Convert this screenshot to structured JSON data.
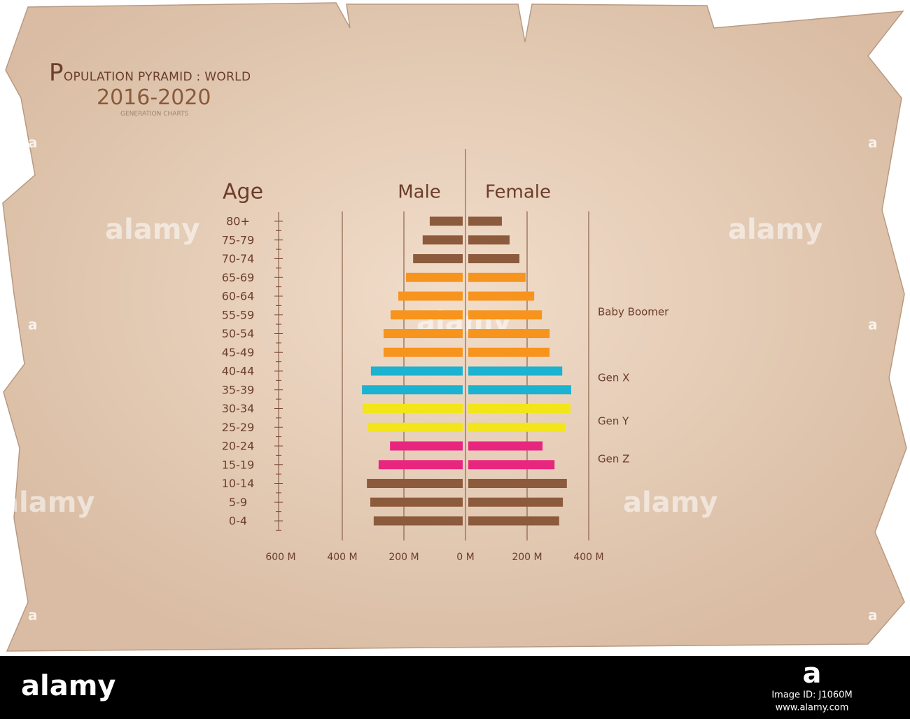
{
  "header": {
    "title": "POPULATION PYRAMID : WORLD",
    "years": "2016-2020",
    "subtitle": "GENERATION CHARTS"
  },
  "chart_data": {
    "type": "pyramid",
    "y_axis_title": "Age",
    "categories": [
      "80+",
      "75-79",
      "70-74",
      "65-69",
      "60-64",
      "55-59",
      "50-54",
      "45-49",
      "40-44",
      "35-39",
      "30-34",
      "25-29",
      "20-24",
      "15-19",
      "10-14",
      "5-9",
      "0-4"
    ],
    "colors": [
      "#8c5a3c",
      "#8c5a3c",
      "#8c5a3c",
      "#f7941d",
      "#f7941d",
      "#f7941d",
      "#f7941d",
      "#f7941d",
      "#1bb3d1",
      "#1bb3d1",
      "#f2e51a",
      "#f2e51a",
      "#e8267f",
      "#e8267f",
      "#8c5a3c",
      "#8c5a3c",
      "#8c5a3c"
    ],
    "series": [
      {
        "name": "Male",
        "values": [
          -107,
          -130,
          -161,
          -184,
          -209,
          -234,
          -257,
          -257,
          -298,
          -327,
          -325,
          -307,
          -236,
          -273,
          -311,
          -300,
          -289
        ]
      },
      {
        "name": "Female",
        "values": [
          109,
          134,
          166,
          186,
          214,
          239,
          264,
          264,
          305,
          334,
          332,
          314,
          241,
          280,
          320,
          307,
          295
        ]
      }
    ],
    "xlim": [
      -600,
      400
    ],
    "xticks": [
      {
        "value": -600,
        "label": "600 M"
      },
      {
        "value": -400,
        "label": "400 M"
      },
      {
        "value": -200,
        "label": "200 M"
      },
      {
        "value": 0,
        "label": "0 M"
      },
      {
        "value": 200,
        "label": "200 M"
      },
      {
        "value": 400,
        "label": "400 M"
      }
    ],
    "annotations": [
      "Baby Boomer",
      "Gen X",
      "Gen Y",
      "Gen Z"
    ]
  },
  "watermark": {
    "brand": "alamy",
    "logo": "a",
    "image_id": "Image ID: J1060M",
    "url": "www.alamy.com"
  }
}
